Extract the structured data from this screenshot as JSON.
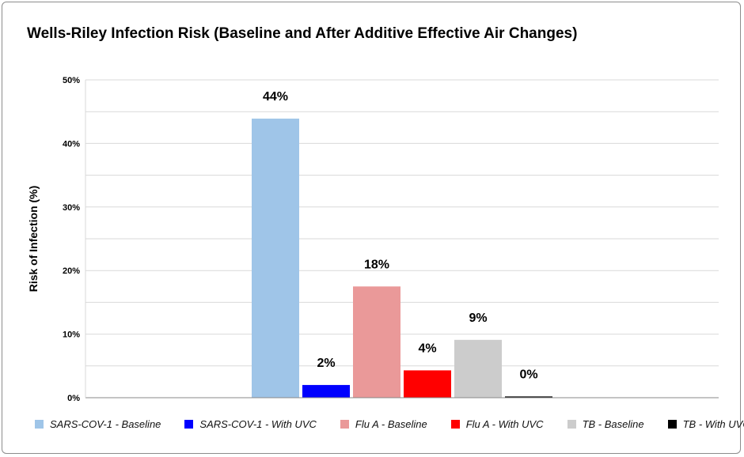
{
  "chart_data": {
    "type": "bar",
    "title": "Wells-Riley Infection Risk (Baseline and After Additive Effective Air Changes)",
    "ylabel": "Risk of Infection (%)",
    "xlabel": "",
    "ylim": [
      0,
      50
    ],
    "yticks": [
      "0%",
      "10%",
      "20%",
      "30%",
      "40%",
      "50%"
    ],
    "grid": true,
    "legend_position": "bottom",
    "series": [
      {
        "name": "SARS-COV-1 - Baseline",
        "value": 43.9,
        "label": "44%",
        "color": "#9fc5e8"
      },
      {
        "name": "SARS-COV-1 - With UVC",
        "value": 2.0,
        "label": "2%",
        "color": "#0000ff"
      },
      {
        "name": "Flu A - Baseline",
        "value": 17.5,
        "label": "18%",
        "color": "#ea9999"
      },
      {
        "name": "Flu A - With UVC",
        "value": 4.3,
        "label": "4%",
        "color": "#ff0000"
      },
      {
        "name": "TB - Baseline",
        "value": 9.1,
        "label": "9%",
        "color": "#cccccc"
      },
      {
        "name": "TB - With UVC",
        "value": 0.2,
        "label": "0%",
        "color": "#000000"
      }
    ]
  }
}
